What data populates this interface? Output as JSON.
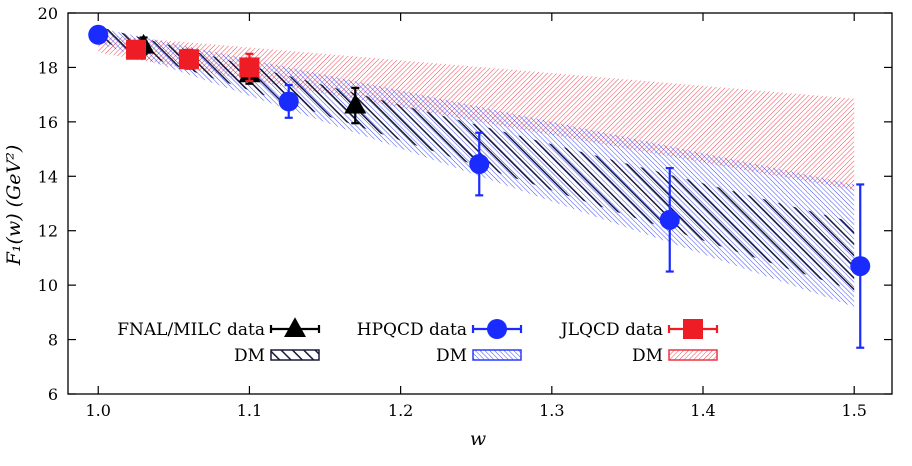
{
  "chart_data": {
    "type": "scatter",
    "title": "",
    "xlabel": "w",
    "ylabel": "F₁(w) (GeV²)",
    "xlim": [
      0.98,
      1.525
    ],
    "ylim": [
      6,
      20
    ],
    "xticks": [
      1.0,
      1.1,
      1.2,
      1.3,
      1.4,
      1.5
    ],
    "xtick_labels": [
      "1.0",
      "1.1",
      "1.2",
      "1.3",
      "1.4",
      "1.5"
    ],
    "yticks": [
      6,
      8,
      10,
      12,
      14,
      16,
      18,
      20
    ],
    "ytick_labels": [
      "6",
      "8",
      "10",
      "12",
      "14",
      "16",
      "18",
      "20"
    ],
    "series": [
      {
        "name": "FNAL/MILC data",
        "marker": "triangle",
        "color": "#000000",
        "points": [
          {
            "x": 1.03,
            "y": 18.8,
            "err": 0.3
          },
          {
            "x": 1.1,
            "y": 17.75,
            "err": 0.35
          },
          {
            "x": 1.17,
            "y": 16.6,
            "err": 0.65
          }
        ]
      },
      {
        "name": "HPQCD data",
        "marker": "circle",
        "color": "#1a2bff",
        "points": [
          {
            "x": 1.0,
            "y": 19.2,
            "err": 0.0
          },
          {
            "x": 1.126,
            "y": 16.75,
            "err": 0.6
          },
          {
            "x": 1.252,
            "y": 14.45,
            "err": 1.15
          },
          {
            "x": 1.378,
            "y": 12.4,
            "err": 1.9
          },
          {
            "x": 1.504,
            "y": 10.7,
            "err": 3.0
          }
        ]
      },
      {
        "name": "JLQCD data",
        "marker": "square",
        "color": "#ee1c25",
        "points": [
          {
            "x": 1.025,
            "y": 18.65,
            "err": 0.2
          },
          {
            "x": 1.06,
            "y": 18.3,
            "err": 0.35
          },
          {
            "x": 1.1,
            "y": 18.0,
            "err": 0.5
          }
        ]
      }
    ],
    "bands": [
      {
        "name": "DM",
        "group": "FNAL/MILC",
        "color": "#1a1a3a",
        "hatch": "backslash",
        "x": [
          1.0,
          1.5
        ],
        "upper": [
          19.5,
          12.3
        ],
        "lower": [
          19.0,
          9.8
        ]
      },
      {
        "name": "DM",
        "group": "HPQCD",
        "color": "#2a3bff",
        "hatch": "backslash",
        "x": [
          1.0,
          1.5
        ],
        "upper": [
          19.45,
          13.7
        ],
        "lower": [
          18.9,
          9.2
        ]
      },
      {
        "name": "DM",
        "group": "JLQCD",
        "color": "#ee3344",
        "hatch": "slash",
        "x": [
          1.0,
          1.5
        ],
        "upper": [
          19.2,
          16.85
        ],
        "lower": [
          18.55,
          13.5
        ]
      }
    ],
    "legend": {
      "placement": "bottom-left",
      "entries": [
        {
          "label": "FNAL/MILC data",
          "kind": "marker",
          "series": 0
        },
        {
          "label": "DM",
          "kind": "band",
          "band": 0
        },
        {
          "label": "HPQCD data",
          "kind": "marker",
          "series": 1
        },
        {
          "label": "DM",
          "kind": "band",
          "band": 1
        },
        {
          "label": "JLQCD data",
          "kind": "marker",
          "series": 2
        },
        {
          "label": "DM",
          "kind": "band",
          "band": 2
        }
      ]
    }
  }
}
